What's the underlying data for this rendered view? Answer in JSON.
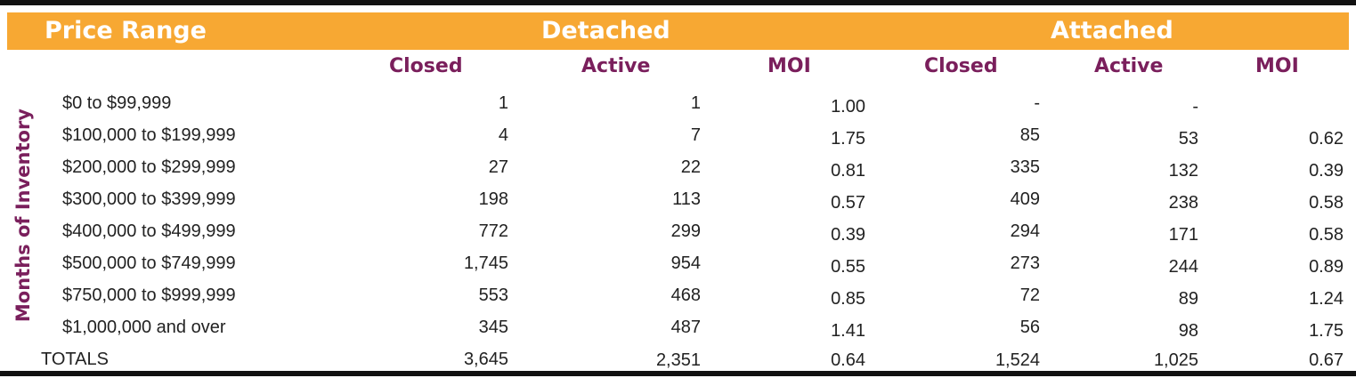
{
  "header": {
    "price_range": "Price Range",
    "detached": "Detached",
    "attached": "Attached"
  },
  "subheaders": [
    "Closed",
    "Active",
    "MOI",
    "Closed",
    "Active",
    "MOI"
  ],
  "side_label": "Months of Inventory",
  "rows": [
    {
      "label": "$0 to $99,999",
      "d_closed": "1",
      "d_active": "1",
      "d_moi": "1.00",
      "a_closed": "-",
      "a_active": "-",
      "a_moi": ""
    },
    {
      "label": "$100,000 to $199,999",
      "d_closed": "4",
      "d_active": "7",
      "d_moi": "1.75",
      "a_closed": "85",
      "a_active": "53",
      "a_moi": "0.62"
    },
    {
      "label": "$200,000 to $299,999",
      "d_closed": "27",
      "d_active": "22",
      "d_moi": "0.81",
      "a_closed": "335",
      "a_active": "132",
      "a_moi": "0.39"
    },
    {
      "label": "$300,000 to $399,999",
      "d_closed": "198",
      "d_active": "113",
      "d_moi": "0.57",
      "a_closed": "409",
      "a_active": "238",
      "a_moi": "0.58"
    },
    {
      "label": "$400,000 to $499,999",
      "d_closed": "772",
      "d_active": "299",
      "d_moi": "0.39",
      "a_closed": "294",
      "a_active": "171",
      "a_moi": "0.58"
    },
    {
      "label": "$500,000 to $749,999",
      "d_closed": "1,745",
      "d_active": "954",
      "d_moi": "0.55",
      "a_closed": "273",
      "a_active": "244",
      "a_moi": "0.89"
    },
    {
      "label": "$750,000 to $999,999",
      "d_closed": "553",
      "d_active": "468",
      "d_moi": "0.85",
      "a_closed": "72",
      "a_active": "89",
      "a_moi": "1.24"
    },
    {
      "label": "$1,000,000 and over",
      "d_closed": "345",
      "d_active": "487",
      "d_moi": "1.41",
      "a_closed": "56",
      "a_active": "98",
      "a_moi": "1.75"
    }
  ],
  "totals": {
    "label": "TOTALS",
    "d_closed": "3,645",
    "d_active": "2,351",
    "d_moi": "0.64",
    "a_closed": "1,524",
    "a_active": "1,025",
    "a_moi": "0.67"
  },
  "colors": {
    "banner": "#F7A833",
    "accent": "#7A1F5C",
    "rule": "#111111"
  }
}
